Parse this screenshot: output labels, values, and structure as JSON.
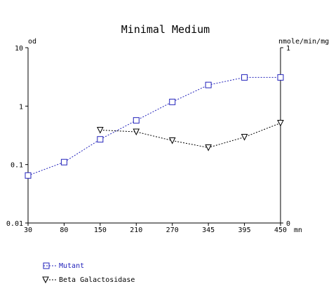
{
  "chart_data": {
    "type": "line",
    "title": "Minimal Medium",
    "xlabel": "mn",
    "ylabel_left": "od",
    "ylabel_right": "nmole/min/mg",
    "x_ticks": [
      30,
      80,
      150,
      210,
      270,
      345,
      395,
      450
    ],
    "xlim": [
      30,
      450
    ],
    "y_left": {
      "scale": "log",
      "ylim": [
        0.01,
        10
      ],
      "ticks": [
        "10",
        "1",
        "0.1",
        "0.01"
      ]
    },
    "y_right": {
      "scale": "linear",
      "ylim": [
        0,
        1
      ],
      "ticks": [
        "1",
        "0"
      ]
    },
    "grid": false,
    "legend_placement": "bottom-left",
    "series": [
      {
        "name": "Mutant",
        "axis": "left",
        "marker": "square",
        "color": "#2222bb",
        "x": [
          30,
          80,
          150,
          210,
          270,
          345,
          395,
          450
        ],
        "y": [
          0.065,
          0.11,
          0.27,
          0.57,
          1.18,
          2.3,
          3.1,
          3.1
        ]
      },
      {
        "name": "Beta Galactosidase",
        "axis": "right",
        "marker": "triangle-down",
        "color": "#000000",
        "x": [
          150,
          210,
          270,
          345,
          395,
          450
        ],
        "y": [
          0.53,
          0.52,
          0.47,
          0.43,
          0.49,
          0.57
        ]
      }
    ]
  }
}
